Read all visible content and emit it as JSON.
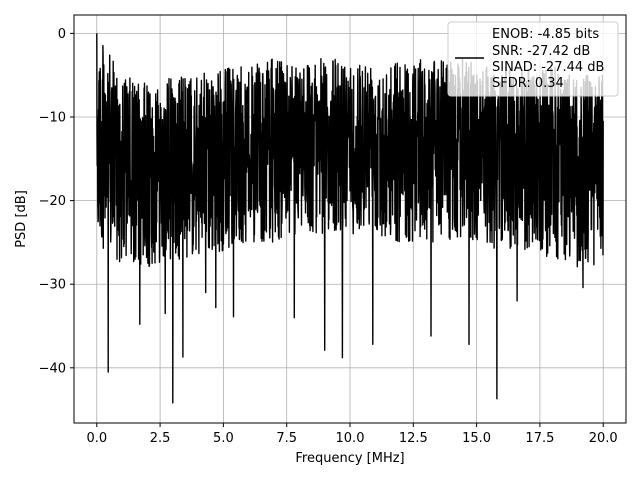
{
  "chart_data": {
    "type": "line",
    "title": "",
    "xlabel": "Frequency [MHz]",
    "ylabel": "PSD [dB]",
    "xlim": [
      -0.9,
      20.9
    ],
    "ylim": [
      -46.6,
      2.2
    ],
    "xticks": [
      0.0,
      2.5,
      5.0,
      7.5,
      10.0,
      12.5,
      15.0,
      17.5,
      20.0
    ],
    "xtick_labels": [
      "0.0",
      "2.5",
      "5.0",
      "7.5",
      "10.0",
      "12.5",
      "15.0",
      "17.5",
      "20.0"
    ],
    "yticks": [
      0,
      -10,
      -20,
      -30,
      -40
    ],
    "ytick_labels": [
      "0",
      "−10",
      "−20",
      "−30",
      "−40"
    ],
    "grid": true,
    "legend_position": "top-right",
    "legend_lines": [
      "ENOB: -4.85 bits",
      "SNR: -27.42 dB",
      "SINAD: -27.44 dB",
      "SFDR: 0.34"
    ],
    "series": [
      {
        "color": "#000000",
        "x_range": [
          0.0,
          20.0
        ],
        "description_points": "dense noise spectrum between roughly -3 and -25 dB with deep nulls",
        "upper_envelope": [
          0,
          -5,
          -6,
          -5,
          -5,
          -4,
          -4,
          -3,
          -3,
          -3,
          -3,
          -3,
          -3,
          -3,
          -3,
          -3,
          -4,
          -4,
          -4,
          -5,
          -5
        ],
        "lower_envelope": [
          -25,
          -28,
          -28,
          -27,
          -27,
          -26,
          -25,
          -25,
          -24,
          -24,
          -24,
          -24,
          -25,
          -25,
          -25,
          -25,
          -26,
          -26,
          -27,
          -28,
          -28
        ],
        "notable_nulls": [
          {
            "x": 0.45,
            "y": -40.5
          },
          {
            "x": 1.7,
            "y": -34.8
          },
          {
            "x": 2.7,
            "y": -33.5
          },
          {
            "x": 3.0,
            "y": -44.2
          },
          {
            "x": 3.4,
            "y": -38.7
          },
          {
            "x": 4.3,
            "y": -31.0
          },
          {
            "x": 4.7,
            "y": -32.8
          },
          {
            "x": 5.4,
            "y": -33.9
          },
          {
            "x": 7.8,
            "y": -34.0
          },
          {
            "x": 9.0,
            "y": -37.9
          },
          {
            "x": 9.7,
            "y": -38.8
          },
          {
            "x": 10.9,
            "y": -37.2
          },
          {
            "x": 13.2,
            "y": -36.2
          },
          {
            "x": 14.7,
            "y": -37.2
          },
          {
            "x": 15.8,
            "y": -43.7
          },
          {
            "x": 16.6,
            "y": -32.0
          },
          {
            "x": 19.2,
            "y": -30.4
          }
        ]
      }
    ]
  }
}
